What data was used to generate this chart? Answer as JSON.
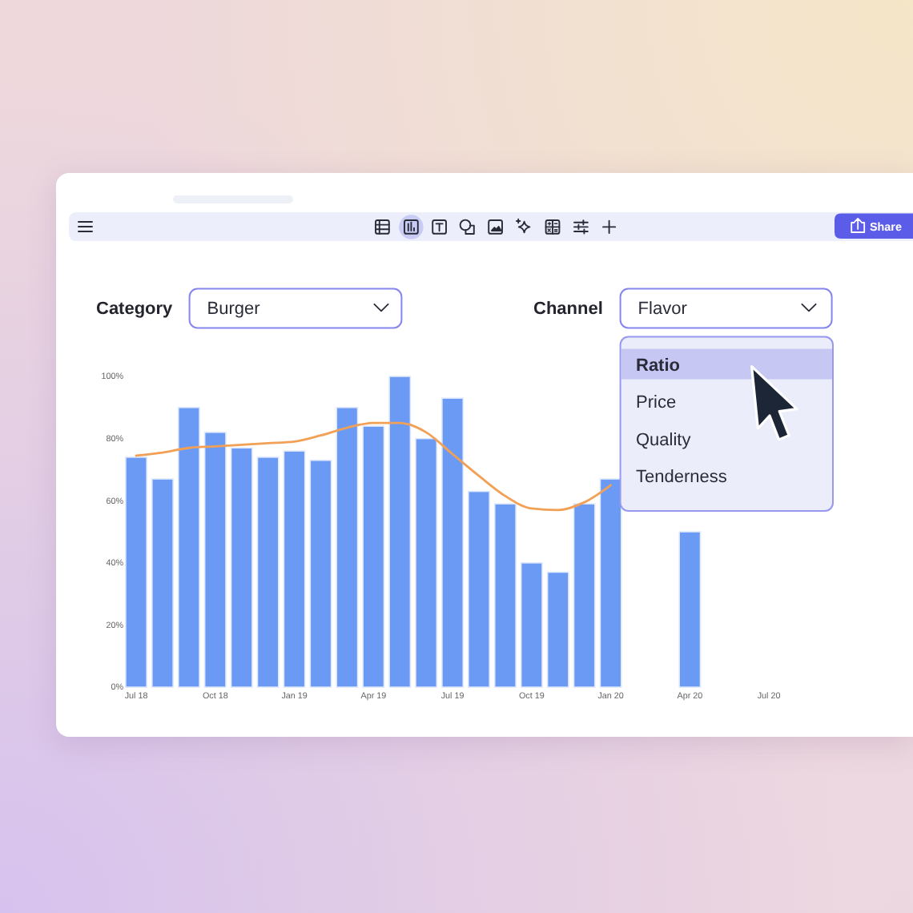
{
  "chart_data": {
    "type": "bar",
    "categories": [
      "Jul 18",
      null,
      null,
      "Oct 18",
      null,
      null,
      "Jan 19",
      null,
      null,
      "Apr 19",
      null,
      null,
      "Jul 19",
      null,
      null,
      "Oct 19",
      null,
      null,
      "Jan 20",
      null,
      null,
      "Apr 20",
      null,
      null,
      "Jul 20",
      null,
      null
    ],
    "series": [
      {
        "color": "#6b9af5",
        "values": [
          74,
          67,
          90,
          82,
          77,
          74,
          76,
          73,
          90,
          84,
          100,
          80,
          93,
          63,
          59,
          40,
          37,
          59,
          67,
          null,
          null,
          50,
          null,
          null,
          null,
          null,
          null
        ]
      },
      {
        "type": "line",
        "color": "#f2a055",
        "values": [
          74.5,
          75.5,
          77,
          77.5,
          78,
          78.5,
          79,
          81,
          83.5,
          85,
          85,
          82,
          75,
          68,
          61.5,
          57.5,
          57,
          59.5,
          65,
          null,
          null,
          null,
          null,
          null,
          null,
          null,
          null
        ]
      }
    ],
    "ylim": [
      0,
      100
    ],
    "yticks": [
      {
        "value": 0,
        "label": "0%"
      },
      {
        "value": 20,
        "label": "20%"
      },
      {
        "value": 40,
        "label": "40%"
      },
      {
        "value": 60,
        "label": "60%"
      },
      {
        "value": 80,
        "label": "80%"
      },
      {
        "value": 100,
        "label": "100%"
      }
    ],
    "annotations": [
      "Category",
      "Burger",
      "Channel",
      "Flavor",
      "Ratio",
      "Price",
      "Quality",
      "Tenderness",
      "Share"
    ]
  }
}
